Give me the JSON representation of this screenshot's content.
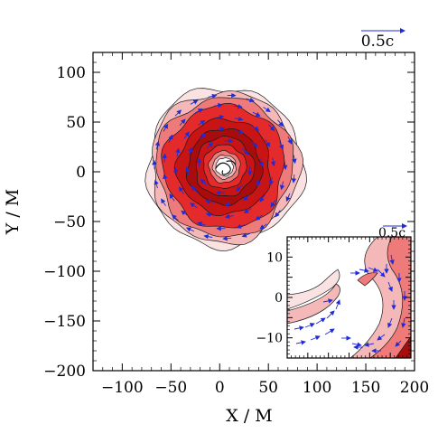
{
  "chart_data": [
    {
      "type": "contour",
      "xlabel": "X / M",
      "ylabel": "Y / M",
      "xlim": [
        -130,
        200
      ],
      "ylim": [
        -200,
        120
      ],
      "xticks": [
        -100,
        -50,
        0,
        50,
        100,
        150,
        200
      ],
      "yticks": [
        -200,
        -150,
        -100,
        -50,
        0,
        50,
        100
      ],
      "velocity_scale_label": "0.5c",
      "fill_colors": [
        "#fbe2e2",
        "#f5b8b8",
        "#ee7a7a",
        "#e42a2a",
        "#c81414",
        "#a80c0c"
      ],
      "contour_levels": [
        {
          "r": 80,
          "color": "#fbe2e2"
        },
        {
          "r": 76,
          "color": "#f5b8b8"
        },
        {
          "r": 70,
          "color": "#ee7a7a"
        },
        {
          "r": 62,
          "color": "#e42a2a"
        },
        {
          "r": 48,
          "color": "#c81414"
        },
        {
          "r": 38,
          "color": "#a80c0c"
        },
        {
          "r": 30,
          "color": "#c81414"
        },
        {
          "r": 22,
          "color": "#e42a2a"
        },
        {
          "r": 16,
          "color": "#ee7a7a"
        },
        {
          "r": 12,
          "color": "#f5b8b8"
        },
        {
          "r": 9,
          "color": "#ffffff"
        }
      ],
      "center": [
        5,
        5
      ]
    },
    {
      "type": "contour",
      "inset": true,
      "xlim": [
        -15,
        15
      ],
      "ylim": [
        -15,
        15
      ],
      "yticks": [
        -10,
        0,
        10
      ],
      "velocity_scale_label": "0.5c"
    }
  ]
}
